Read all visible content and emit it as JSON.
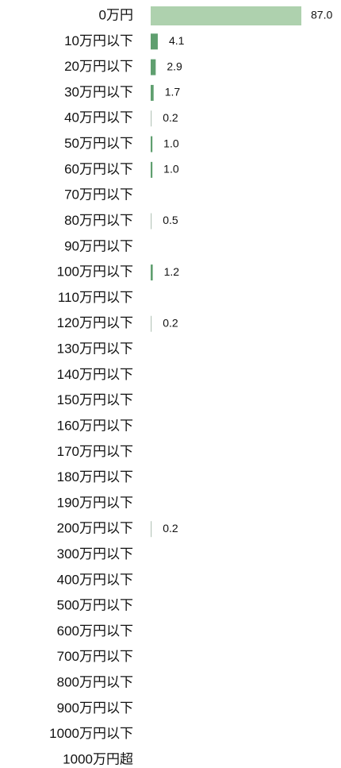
{
  "chart_data": {
    "type": "barh",
    "categories": [
      "0万円",
      "10万円以下",
      "20万円以下",
      "30万円以下",
      "40万円以下",
      "50万円以下",
      "60万円以下",
      "70万円以下",
      "80万円以下",
      "90万円以下",
      "100万円以下",
      "110万円以下",
      "120万円以下",
      "130万円以下",
      "140万円以下",
      "150万円以下",
      "160万円以下",
      "170万円以下",
      "180万円以下",
      "190万円以下",
      "200万円以下",
      "300万円以下",
      "400万円以下",
      "500万円以下",
      "600万円以下",
      "700万円以下",
      "800万円以下",
      "900万円以下",
      "1000万円以下",
      "1000万円超"
    ],
    "values": [
      87.0,
      4.1,
      2.9,
      1.7,
      0.2,
      1.0,
      1.0,
      null,
      0.5,
      null,
      1.2,
      null,
      0.2,
      null,
      null,
      null,
      null,
      null,
      null,
      null,
      0.2,
      null,
      null,
      null,
      null,
      null,
      null,
      null,
      null,
      null
    ],
    "value_labels": [
      "87.0",
      "4.1",
      "2.9",
      "1.7",
      "0.2",
      "1.0",
      "1.0",
      null,
      "0.5",
      null,
      "1.2",
      null,
      "0.2",
      null,
      null,
      null,
      null,
      null,
      null,
      null,
      "0.2",
      null,
      null,
      null,
      null,
      null,
      null,
      null,
      null,
      null
    ],
    "colors": [
      "#aed1ae",
      "#5f9f6f",
      "#5f9f6f",
      "#5f9f6f",
      "#b8c8bc",
      "#5f9f6f",
      "#5f9f6f",
      null,
      "#b8c8bc",
      null,
      "#5f9f6f",
      null,
      "#b8c8bc",
      null,
      null,
      null,
      null,
      null,
      null,
      null,
      "#b8c8bc",
      null,
      null,
      null,
      null,
      null,
      null,
      null,
      null,
      null
    ]
  }
}
